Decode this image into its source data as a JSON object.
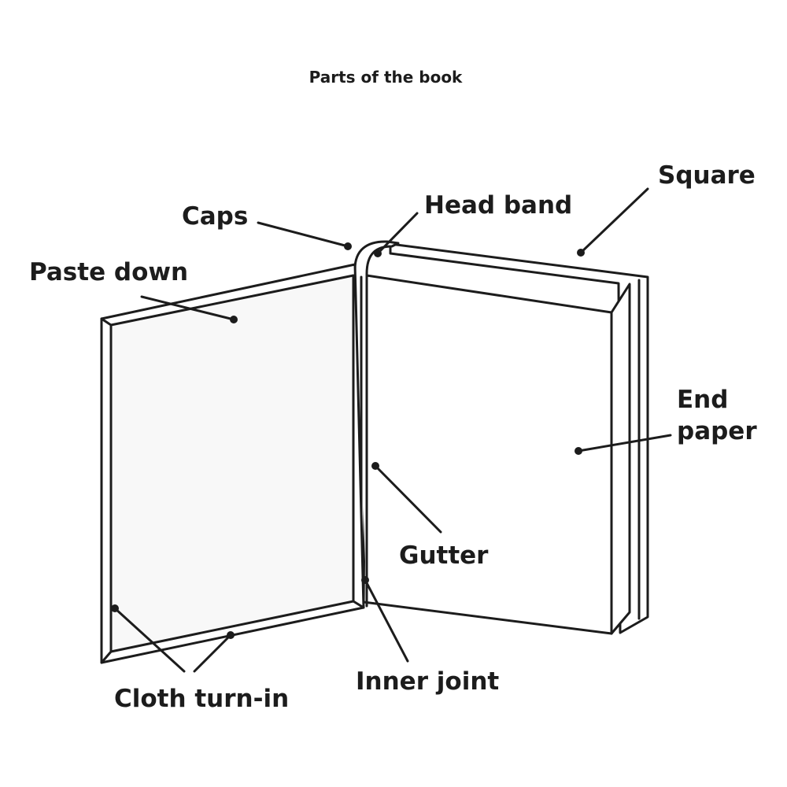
{
  "title": "Parts of the book",
  "labels": {
    "square": "Square",
    "head_band": "Head band",
    "caps": "Caps",
    "paste_down": "Paste down",
    "end_paper_line1": "End",
    "end_paper_line2": "paper",
    "gutter": "Gutter",
    "inner_joint": "Inner joint",
    "cloth_turn_in": "Cloth turn-in"
  },
  "colors": {
    "line": "#1c1c1c",
    "paper": "#ffffff",
    "paste_down_fill": "#f8f8f8"
  }
}
